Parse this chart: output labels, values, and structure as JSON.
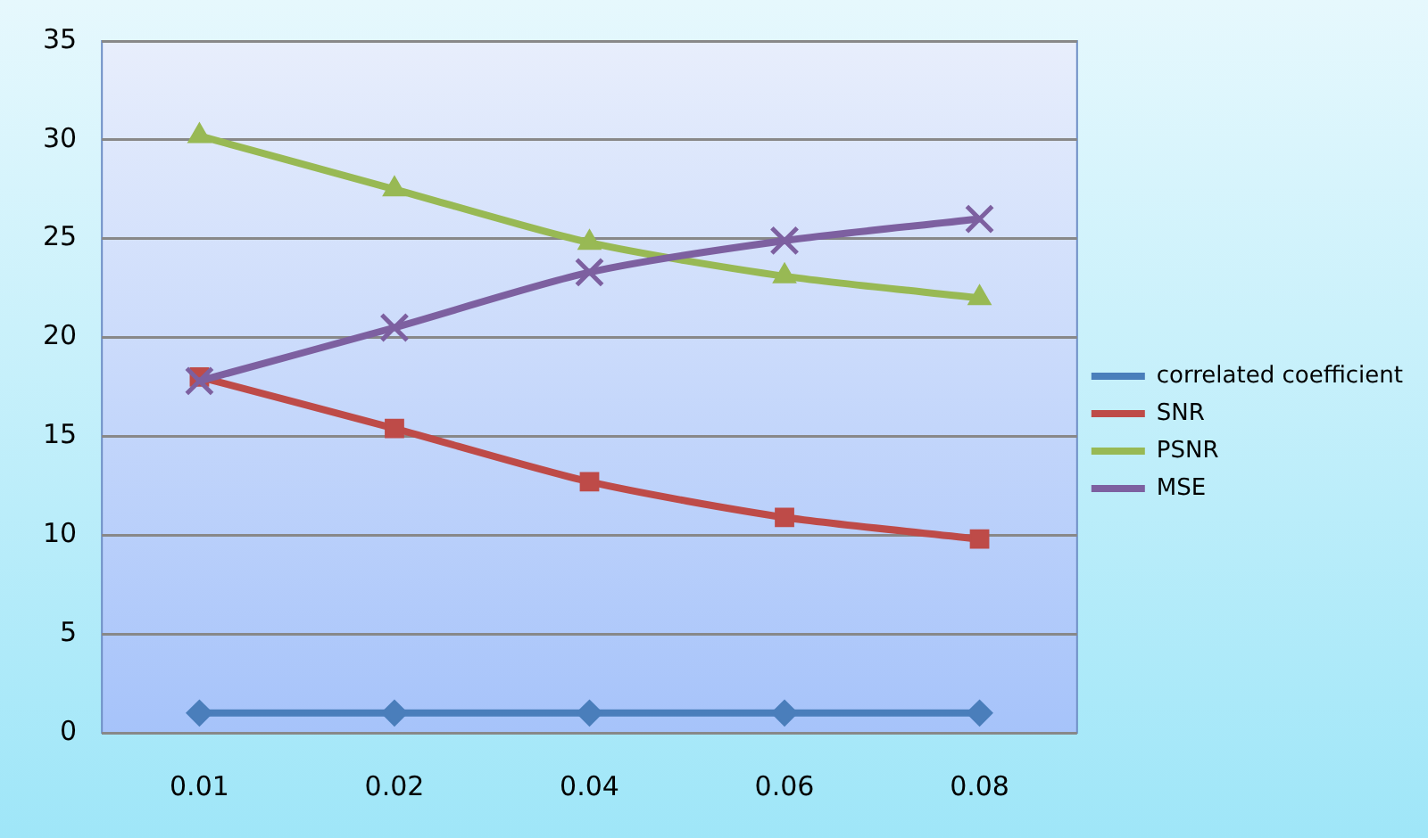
{
  "chart_data": {
    "type": "line",
    "categories": [
      "0.01",
      "0.02",
      "0.04",
      "0.06",
      "0.08"
    ],
    "series": [
      {
        "name": "correlated coefficient",
        "color": "#4a7ebb",
        "marker": "diamond",
        "values": [
          1.0,
          1.0,
          1.0,
          1.0,
          1.0
        ]
      },
      {
        "name": "SNR",
        "color": "#be4b48",
        "marker": "square",
        "values": [
          18.0,
          15.4,
          12.7,
          10.9,
          9.8
        ]
      },
      {
        "name": "PSNR",
        "color": "#98b954",
        "marker": "triangle",
        "values": [
          30.2,
          27.5,
          24.8,
          23.1,
          22.0
        ]
      },
      {
        "name": "MSE",
        "color": "#7d60a0",
        "marker": "cross",
        "values": [
          17.8,
          20.5,
          23.3,
          24.9,
          26.0
        ]
      }
    ],
    "ylim": [
      0,
      35
    ],
    "yticks": [
      0,
      5,
      10,
      15,
      20,
      25,
      30,
      35
    ],
    "grid": "y",
    "legend": "right"
  }
}
